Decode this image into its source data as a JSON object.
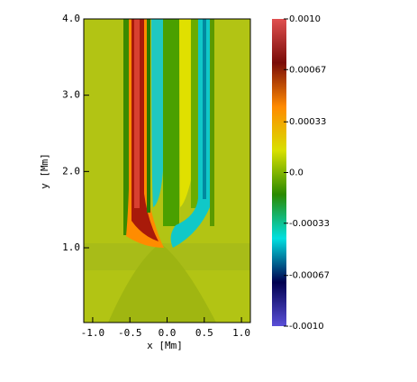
{
  "chart_data": {
    "type": "heatmap",
    "xlabel": "x [Mm]",
    "ylabel": "y [Mm]",
    "xlim": [
      -1.12,
      1.12
    ],
    "xticks": [
      {
        "value": -1,
        "label": "-1.0"
      },
      {
        "value": -0.5,
        "label": "-0.5"
      },
      {
        "value": 0,
        "label": "0.0"
      },
      {
        "value": 0.5,
        "label": "0.5"
      },
      {
        "value": 1,
        "label": "1.0"
      }
    ],
    "ylim": [
      0.02,
      4.0
    ],
    "yticks": [
      {
        "value": 1,
        "label": "1.0"
      },
      {
        "value": 2,
        "label": "2.0"
      },
      {
        "value": 3,
        "label": "3.0"
      },
      {
        "value": 4,
        "label": "4.0"
      }
    ],
    "clim": [
      -0.001,
      0.001
    ],
    "cticks": [
      {
        "value": 0.001,
        "label": "0.0010"
      },
      {
        "value": 0.00067,
        "label": "0.00067"
      },
      {
        "value": 0.00033,
        "label": "0.00033"
      },
      {
        "value": 0,
        "label": "0.0"
      },
      {
        "value": -0.00033,
        "label": "-0.00033"
      },
      {
        "value": -0.00067,
        "label": "-0.00067"
      },
      {
        "value": -0.001,
        "label": "-0.0010"
      }
    ],
    "colorscale": [
      "#5a4fd8",
      "#000050",
      "#00e0e0",
      "#2a8a00",
      "#d8e000",
      "#ff8a00",
      "#7a0c08",
      "#e05050"
    ]
  }
}
